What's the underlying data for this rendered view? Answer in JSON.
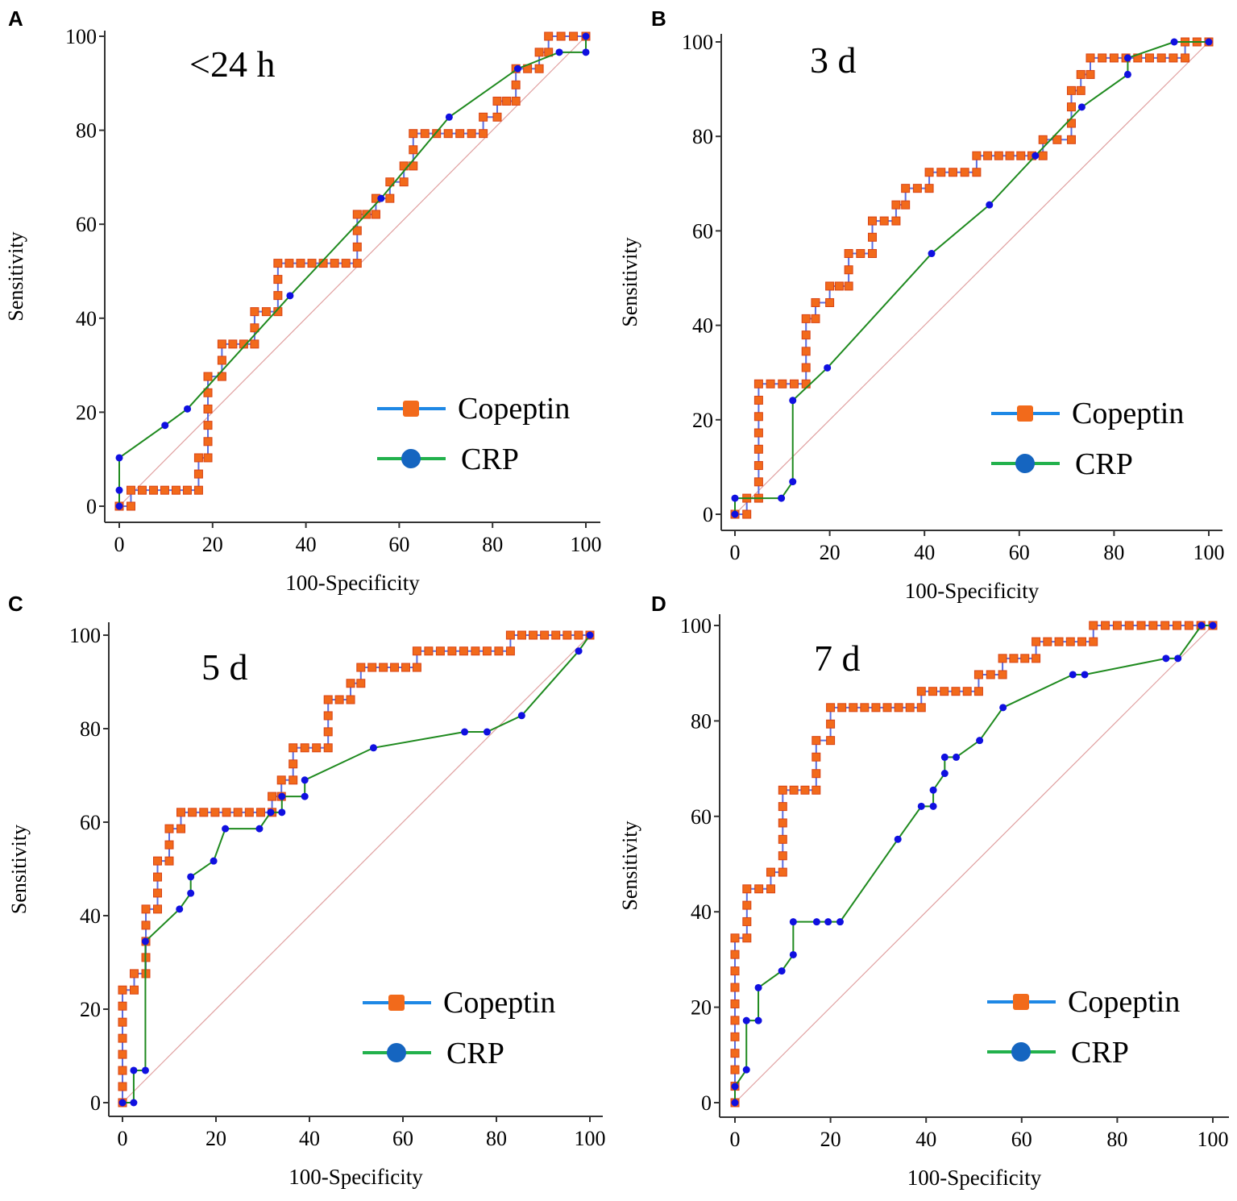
{
  "chart_data": [
    {
      "type": "line",
      "panel_label": "A",
      "title": "<24 h",
      "xlabel": "100-Specificity",
      "ylabel": "Sensitivity",
      "xlim": [
        0,
        100
      ],
      "ylim": [
        0,
        100
      ],
      "xticks": [
        0,
        20,
        40,
        60,
        80,
        100
      ],
      "yticks": [
        0,
        20,
        40,
        60,
        80,
        100
      ],
      "grid": false,
      "legend_position": "bottom-right",
      "reference_line": true,
      "series": [
        {
          "name": "Copeptin",
          "line_color": "#5b6ee0",
          "marker_color": "#f26a1b",
          "marker": "square",
          "x": [
            0,
            2.5,
            2.5,
            17,
            17,
            19,
            19,
            22,
            22,
            29,
            29,
            34,
            34,
            51,
            51,
            55,
            55,
            58,
            58,
            61,
            61,
            63,
            63,
            78,
            78,
            81,
            81,
            85,
            85,
            90,
            90,
            92,
            92,
            100
          ],
          "y": [
            0,
            0,
            3.4,
            3.4,
            10.3,
            10.3,
            27.6,
            27.6,
            34.5,
            34.5,
            41.4,
            41.4,
            51.7,
            51.7,
            62.1,
            62.1,
            65.5,
            65.5,
            69,
            69,
            72.4,
            72.4,
            79.3,
            79.3,
            82.8,
            82.8,
            86.2,
            86.2,
            93.1,
            93.1,
            96.6,
            96.6,
            100,
            100
          ]
        },
        {
          "name": "CRP",
          "line_color": "#1f8a1f",
          "marker_color": "#1010e0",
          "marker": "circle",
          "x": [
            0,
            0,
            0,
            9.8,
            14.6,
            36.6,
            56.1,
            70.7,
            85.4,
            94.3,
            100,
            100
          ],
          "y": [
            0,
            3.4,
            10.3,
            17.2,
            20.7,
            44.8,
            65.5,
            82.8,
            93.1,
            96.6,
            96.6,
            100
          ]
        }
      ]
    },
    {
      "type": "line",
      "panel_label": "B",
      "title": "3 d",
      "xlabel": "100-Specificity",
      "ylabel": "Sensitivity",
      "xlim": [
        0,
        100
      ],
      "ylim": [
        0,
        100
      ],
      "xticks": [
        0,
        20,
        40,
        60,
        80,
        100
      ],
      "yticks": [
        0,
        20,
        40,
        60,
        80,
        100
      ],
      "grid": false,
      "legend_position": "bottom-right",
      "reference_line": true,
      "series": [
        {
          "name": "Copeptin",
          "line_color": "#5b6ee0",
          "marker_color": "#f26a1b",
          "marker": "square",
          "x": [
            0,
            2.5,
            2.5,
            5,
            5,
            15,
            15,
            17,
            17,
            20,
            20,
            24,
            24,
            29,
            29,
            34,
            34,
            36,
            36,
            41,
            41,
            51,
            51,
            65,
            65,
            71,
            71,
            73,
            73,
            75,
            75,
            95,
            95,
            100
          ],
          "y": [
            0,
            0,
            3.4,
            3.4,
            27.6,
            27.6,
            41.4,
            41.4,
            44.8,
            44.8,
            48.3,
            48.3,
            55.2,
            55.2,
            62.1,
            62.1,
            65.5,
            65.5,
            69,
            69,
            72.4,
            72.4,
            75.9,
            75.9,
            79.3,
            79.3,
            89.7,
            89.7,
            93.1,
            93.1,
            96.6,
            96.6,
            100,
            100
          ]
        },
        {
          "name": "CRP",
          "line_color": "#1f8a1f",
          "marker_color": "#1010e0",
          "marker": "circle",
          "x": [
            0,
            0,
            9.8,
            12.2,
            12.2,
            19.5,
            41.5,
            53.7,
            63.4,
            73.2,
            82.9,
            82.9,
            92.7,
            100
          ],
          "y": [
            0,
            3.4,
            3.4,
            6.9,
            24.1,
            31,
            55.2,
            65.5,
            75.9,
            86.2,
            93.1,
            96.6,
            100,
            100
          ]
        }
      ]
    },
    {
      "type": "line",
      "panel_label": "C",
      "title": "5 d",
      "xlabel": "100-Specificity",
      "ylabel": "Sensitivity",
      "xlim": [
        0,
        100
      ],
      "ylim": [
        0,
        100
      ],
      "xticks": [
        0,
        20,
        40,
        60,
        80,
        100
      ],
      "yticks": [
        0,
        20,
        40,
        60,
        80,
        100
      ],
      "grid": false,
      "legend_position": "bottom-right",
      "reference_line": true,
      "series": [
        {
          "name": "Copeptin",
          "line_color": "#5b6ee0",
          "marker_color": "#f26a1b",
          "marker": "square",
          "x": [
            0,
            0,
            2.5,
            2.5,
            5,
            5,
            7.5,
            7.5,
            10,
            10,
            12.5,
            12.5,
            32,
            32,
            34,
            34,
            36.5,
            36.5,
            44,
            44,
            48.8,
            48.8,
            51,
            51,
            63,
            63,
            83,
            83,
            100
          ],
          "y": [
            0,
            24.1,
            24.1,
            27.6,
            27.6,
            41.4,
            41.4,
            51.7,
            51.7,
            58.6,
            58.6,
            62.1,
            62.1,
            65.5,
            65.5,
            69,
            69,
            75.9,
            75.9,
            86.2,
            86.2,
            89.7,
            89.7,
            93.1,
            93.1,
            96.6,
            96.6,
            100,
            100
          ]
        },
        {
          "name": "CRP",
          "line_color": "#1f8a1f",
          "marker_color": "#1010e0",
          "marker": "circle",
          "x": [
            0,
            2.4,
            2.4,
            4.9,
            4.9,
            12.2,
            14.6,
            14.6,
            19.5,
            22,
            29.3,
            31.7,
            34.1,
            34.1,
            39,
            39,
            53.7,
            73.2,
            78,
            85.4,
            97.6,
            100
          ],
          "y": [
            0,
            0,
            6.9,
            6.9,
            34.5,
            41.4,
            44.8,
            48.3,
            51.7,
            58.6,
            58.6,
            62.1,
            62.1,
            65.5,
            65.5,
            69,
            75.9,
            79.3,
            79.3,
            82.8,
            96.6,
            100
          ]
        }
      ]
    },
    {
      "type": "line",
      "panel_label": "D",
      "title": "7 d",
      "xlabel": "100-Specificity",
      "ylabel": "Sensitivity",
      "xlim": [
        0,
        100
      ],
      "ylim": [
        0,
        100
      ],
      "xticks": [
        0,
        20,
        40,
        60,
        80,
        100
      ],
      "yticks": [
        0,
        20,
        40,
        60,
        80,
        100
      ],
      "grid": false,
      "legend_position": "bottom-right",
      "reference_line": true,
      "series": [
        {
          "name": "Copeptin",
          "line_color": "#5b6ee0",
          "marker_color": "#f26a1b",
          "marker": "square",
          "x": [
            0,
            0,
            2.5,
            2.5,
            7.5,
            7.5,
            10,
            10,
            17,
            17,
            20,
            20,
            39,
            39,
            51,
            51,
            56,
            56,
            63,
            63,
            75,
            75,
            100
          ],
          "y": [
            0,
            34.5,
            34.5,
            44.8,
            44.8,
            48.3,
            48.3,
            65.5,
            65.5,
            75.9,
            75.9,
            82.8,
            82.8,
            86.2,
            86.2,
            89.7,
            89.7,
            93.1,
            93.1,
            96.6,
            96.6,
            100,
            100
          ]
        },
        {
          "name": "CRP",
          "line_color": "#1f8a1f",
          "marker_color": "#1010e0",
          "marker": "circle",
          "x": [
            0,
            0,
            2.4,
            2.4,
            4.9,
            4.9,
            9.8,
            12.2,
            12.2,
            17.1,
            19.5,
            22,
            34.1,
            39,
            41.5,
            41.5,
            43.9,
            43.9,
            46.3,
            51.2,
            56.1,
            70.7,
            73.2,
            90.2,
            92.7,
            97.6,
            100
          ],
          "y": [
            0,
            3.4,
            6.9,
            17.2,
            17.2,
            24.1,
            27.6,
            31,
            37.9,
            37.9,
            37.9,
            37.9,
            55.2,
            62.1,
            62.1,
            65.5,
            69,
            72.4,
            72.4,
            75.9,
            82.8,
            89.7,
            89.7,
            93.1,
            93.1,
            100,
            100
          ]
        }
      ]
    }
  ],
  "legend_colors": {
    "copeptin_line": "#1e88e5",
    "crp_line": "#22b14c",
    "copeptin_marker": "#f26a1b",
    "crp_marker": "#1565c0"
  }
}
